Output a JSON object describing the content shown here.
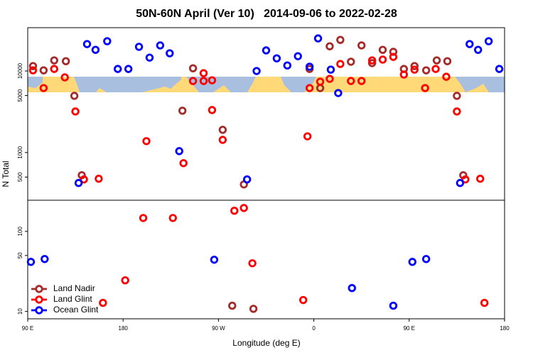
{
  "chart_data": [
    {
      "type": "scatter",
      "title": "50N-60N April (Ver 10)   2014-09-06 to 2022-02-28",
      "ylabel": "N Total",
      "xlim": [
        90,
        540
      ],
      "ylim": [
        260,
        34000
      ],
      "yticks": [
        500,
        1000,
        5000,
        10000
      ],
      "log_y": true,
      "series": [
        {
          "color": "#a52a2a",
          "x": [
            95,
            105,
            115,
            126,
            134,
            141,
            236,
            246,
            274,
            294,
            356,
            366,
            375,
            385,
            395,
            405,
            415,
            425,
            435,
            445,
            455,
            466,
            476,
            486,
            495,
            501
          ],
          "values": [
            11500,
            10200,
            13500,
            13200,
            4960,
            527,
            3260,
            10800,
            1900,
            406,
            10600,
            6180,
            20100,
            24100,
            13000,
            20600,
            12500,
            18200,
            17200,
            10600,
            11500,
            10200,
            13500,
            13200,
            4960,
            527
          ]
        },
        {
          "color": "#ff0000",
          "x": [
            95,
            105,
            115,
            125,
            135,
            143,
            157,
            202,
            237,
            246,
            256,
            256,
            264,
            264,
            274,
            354,
            356,
            366,
            375,
            385,
            395,
            405,
            415,
            425,
            435,
            445,
            455,
            465,
            475,
            485,
            495,
            503,
            517
          ],
          "values": [
            10200,
            6180,
            10600,
            8350,
            3190,
            468,
            477,
            1380,
            741,
            7550,
            9400,
            7550,
            7700,
            3320,
            1430,
            1580,
            6180,
            7400,
            8020,
            12200,
            7550,
            7550,
            13500,
            13800,
            14900,
            9050,
            10400,
            6180,
            10600,
            8500,
            3190,
            468,
            477
          ]
        },
        {
          "color": "#0000ff",
          "x": [
            138,
            146,
            154,
            165,
            175,
            185,
            195,
            205,
            215,
            224,
            233,
            297,
            306,
            315,
            325,
            335,
            345,
            356,
            364,
            376,
            383,
            498,
            507,
            515,
            525,
            535
          ],
          "values": [
            423,
            21400,
            18200,
            23200,
            10600,
            10600,
            19800,
            14600,
            20600,
            16500,
            1040,
            468,
            10000,
            17900,
            14300,
            11700,
            15200,
            11300,
            25100,
            10400,
            5370,
            423,
            21400,
            18200,
            23200,
            10600
          ]
        }
      ]
    },
    {
      "type": "scatter",
      "xlabel": "Longitude (deg E)",
      "xlim": [
        90,
        540
      ],
      "xticks": [
        {
          "value": 90,
          "label": "90 E"
        },
        180,
        {
          "value": 270,
          "label": "90 W"
        },
        {
          "value": 360,
          "label": "0"
        },
        {
          "value": 450,
          "label": "90 E"
        },
        {
          "value": 540,
          "label": "180"
        }
      ],
      "ylim": [
        8.1,
        245
      ],
      "yticks": [
        10,
        50,
        100
      ],
      "log_y": true,
      "legend": "lower left",
      "series": [
        {
          "name": "Land Nadir",
          "color": "#a52a2a",
          "x": [
            283,
            303
          ],
          "values": [
            11.8,
            10.8
          ]
        },
        {
          "name": "Land Glint",
          "color": "#ff0000",
          "x": [
            161,
            182,
            199,
            227,
            285,
            294,
            302,
            350,
            521
          ],
          "values": [
            12.8,
            24.5,
            147,
            147,
            181,
            196,
            40,
            13.9,
            12.8
          ]
        },
        {
          "name": "Ocean Glint",
          "color": "#0000ff",
          "x": [
            93,
            106,
            266,
            396,
            435,
            453,
            466
          ],
          "values": [
            41.6,
            45.2,
            44.3,
            19.6,
            11.8,
            41.6,
            45.2
          ]
        }
      ]
    }
  ]
}
